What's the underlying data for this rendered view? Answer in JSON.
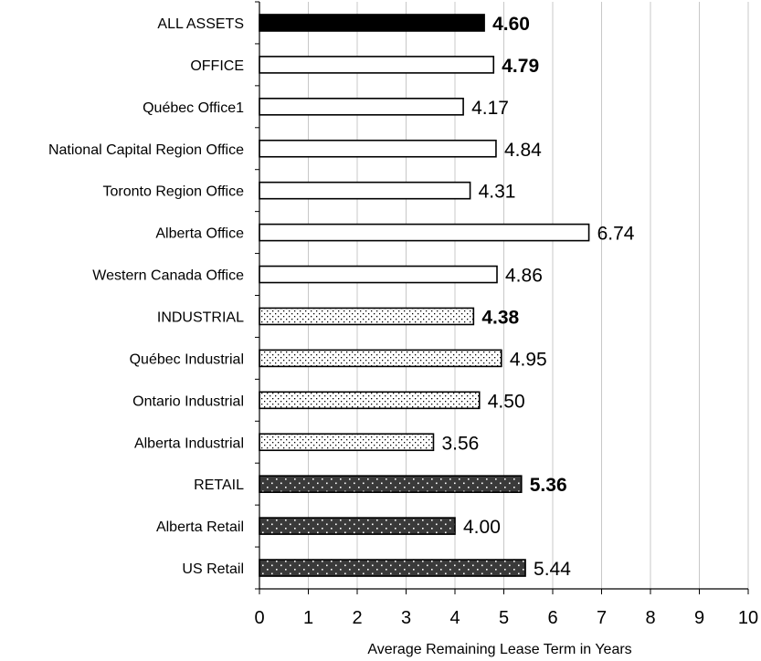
{
  "chart_data": {
    "type": "bar",
    "orientation": "horizontal",
    "title": "",
    "xlabel": "Average Remaining Lease Term in Years",
    "ylabel": "",
    "xlim": [
      0,
      10
    ],
    "ticks": [
      "0",
      "1",
      "2",
      "3",
      "4",
      "5",
      "6",
      "7",
      "8",
      "9",
      "10"
    ],
    "grid": true,
    "categories": [
      "ALL ASSETS",
      "OFFICE",
      "Québec Office1",
      "National Capital Region Office",
      "Toronto Region Office",
      "Alberta Office",
      "Western Canada Office",
      "INDUSTRIAL",
      "Québec Industrial",
      "Ontario Industrial",
      "Alberta Industrial",
      "RETAIL",
      "Alberta Retail",
      "US Retail"
    ],
    "values": [
      4.6,
      4.79,
      4.17,
      4.84,
      4.31,
      6.74,
      4.86,
      4.38,
      4.95,
      4.5,
      3.56,
      5.36,
      4.0,
      5.44
    ],
    "value_labels": [
      "4.60",
      "4.79",
      "4.17",
      "4.84",
      "4.31",
      "6.74",
      "4.86",
      "4.38",
      "4.95",
      "4.50",
      "3.56",
      "5.36",
      "4.00",
      "5.44"
    ],
    "bold_labels": [
      true,
      true,
      false,
      false,
      false,
      false,
      false,
      true,
      false,
      false,
      false,
      true,
      false,
      false
    ],
    "fills": [
      "solid-black",
      "white",
      "white",
      "white",
      "white",
      "white",
      "white",
      "dotted-light",
      "dotted-light",
      "dotted-light",
      "dotted-light",
      "dotted-dark",
      "dotted-dark",
      "dotted-dark"
    ],
    "colors": {
      "black": "#000000",
      "white": "#ffffff",
      "dark_fill": "#3a3a3a",
      "grid": "#c8c8c8"
    }
  }
}
